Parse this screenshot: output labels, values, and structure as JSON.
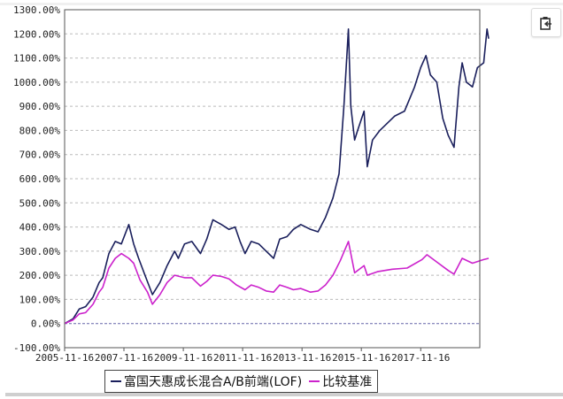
{
  "chart_data": {
    "type": "line",
    "title": "",
    "xlabel": "",
    "ylabel": "",
    "x_ticks": [
      "2005-11-16",
      "2007-11-16",
      "2009-11-16",
      "2011-11-16",
      "2013-11-16",
      "2015-11-16",
      "2017-11-16"
    ],
    "x_range": [
      "2005-11-16",
      "2020-03-01"
    ],
    "y_ticks": [
      "1300.00%",
      "1200.00%",
      "1100.00%",
      "1000.00%",
      "900.00%",
      "800.00%",
      "700.00%",
      "600.00%",
      "500.00%",
      "400.00%",
      "300.00%",
      "200.00%",
      "100.00%",
      "0.00%",
      "-100.00%"
    ],
    "ylim": [
      -100,
      1300
    ],
    "grid": "horizontal dashed",
    "legend_position": "bottom",
    "series": [
      {
        "name": "富国天惠成长混合A/B前端(LOF)",
        "color": "#1a1f5c",
        "points": [
          [
            "2005-11-16",
            0
          ],
          [
            "2006-03-01",
            20
          ],
          [
            "2006-05-15",
            60
          ],
          [
            "2006-08-01",
            70
          ],
          [
            "2006-11-01",
            110
          ],
          [
            "2007-01-15",
            170
          ],
          [
            "2007-03-01",
            190
          ],
          [
            "2007-05-15",
            290
          ],
          [
            "2007-08-01",
            340
          ],
          [
            "2007-10-15",
            330
          ],
          [
            "2008-01-15",
            410
          ],
          [
            "2008-03-15",
            330
          ],
          [
            "2008-05-15",
            270
          ],
          [
            "2008-08-01",
            200
          ],
          [
            "2008-11-01",
            120
          ],
          [
            "2009-02-01",
            170
          ],
          [
            "2009-05-01",
            240
          ],
          [
            "2009-08-01",
            300
          ],
          [
            "2009-09-15",
            270
          ],
          [
            "2009-12-01",
            330
          ],
          [
            "2010-03-01",
            340
          ],
          [
            "2010-06-15",
            290
          ],
          [
            "2010-09-01",
            350
          ],
          [
            "2010-11-15",
            430
          ],
          [
            "2011-03-01",
            410
          ],
          [
            "2011-06-01",
            390
          ],
          [
            "2011-08-15",
            400
          ],
          [
            "2011-10-15",
            340
          ],
          [
            "2011-12-15",
            290
          ],
          [
            "2012-03-01",
            340
          ],
          [
            "2012-06-01",
            330
          ],
          [
            "2012-09-01",
            300
          ],
          [
            "2012-12-01",
            270
          ],
          [
            "2013-02-15",
            350
          ],
          [
            "2013-05-15",
            360
          ],
          [
            "2013-08-01",
            390
          ],
          [
            "2013-11-01",
            410
          ],
          [
            "2014-03-01",
            390
          ],
          [
            "2014-06-01",
            380
          ],
          [
            "2014-09-01",
            440
          ],
          [
            "2014-12-01",
            520
          ],
          [
            "2015-02-15",
            620
          ],
          [
            "2015-04-15",
            900
          ],
          [
            "2015-06-10",
            1220
          ],
          [
            "2015-07-10",
            900
          ],
          [
            "2015-08-25",
            760
          ],
          [
            "2015-10-01",
            800
          ],
          [
            "2015-12-20",
            880
          ],
          [
            "2016-01-28",
            650
          ],
          [
            "2016-04-01",
            760
          ],
          [
            "2016-07-01",
            800
          ],
          [
            "2016-10-01",
            830
          ],
          [
            "2017-01-01",
            860
          ],
          [
            "2017-05-01",
            880
          ],
          [
            "2017-09-01",
            980
          ],
          [
            "2017-11-15",
            1060
          ],
          [
            "2018-01-20",
            1110
          ],
          [
            "2018-03-15",
            1030
          ],
          [
            "2018-06-01",
            1000
          ],
          [
            "2018-08-15",
            850
          ],
          [
            "2018-10-20",
            780
          ],
          [
            "2018-12-31",
            730
          ],
          [
            "2019-03-01",
            980
          ],
          [
            "2019-04-10",
            1080
          ],
          [
            "2019-06-01",
            1000
          ],
          [
            "2019-08-15",
            980
          ],
          [
            "2019-10-15",
            1060
          ],
          [
            "2019-12-31",
            1080
          ],
          [
            "2020-02-10",
            1220
          ],
          [
            "2020-03-01",
            1180
          ]
        ]
      },
      {
        "name": "比较基准",
        "color": "#cc22cc",
        "points": [
          [
            "2005-11-16",
            0
          ],
          [
            "2006-03-01",
            15
          ],
          [
            "2006-05-15",
            40
          ],
          [
            "2006-08-01",
            45
          ],
          [
            "2006-11-01",
            80
          ],
          [
            "2007-01-15",
            130
          ],
          [
            "2007-03-01",
            150
          ],
          [
            "2007-05-15",
            230
          ],
          [
            "2007-08-01",
            270
          ],
          [
            "2007-10-15",
            290
          ],
          [
            "2008-01-15",
            270
          ],
          [
            "2008-03-15",
            250
          ],
          [
            "2008-06-01",
            180
          ],
          [
            "2008-09-01",
            130
          ],
          [
            "2008-11-01",
            80
          ],
          [
            "2009-02-01",
            120
          ],
          [
            "2009-05-01",
            170
          ],
          [
            "2009-08-01",
            200
          ],
          [
            "2009-12-01",
            190
          ],
          [
            "2010-03-01",
            190
          ],
          [
            "2010-06-15",
            155
          ],
          [
            "2010-09-01",
            175
          ],
          [
            "2010-11-15",
            200
          ],
          [
            "2011-03-01",
            195
          ],
          [
            "2011-06-01",
            185
          ],
          [
            "2011-09-01",
            160
          ],
          [
            "2011-12-15",
            140
          ],
          [
            "2012-03-01",
            160
          ],
          [
            "2012-06-01",
            150
          ],
          [
            "2012-09-01",
            135
          ],
          [
            "2012-12-01",
            130
          ],
          [
            "2013-02-15",
            160
          ],
          [
            "2013-05-15",
            150
          ],
          [
            "2013-08-01",
            140
          ],
          [
            "2013-11-01",
            145
          ],
          [
            "2014-03-01",
            130
          ],
          [
            "2014-06-01",
            135
          ],
          [
            "2014-09-01",
            160
          ],
          [
            "2014-12-01",
            200
          ],
          [
            "2015-03-01",
            260
          ],
          [
            "2015-06-10",
            340
          ],
          [
            "2015-08-25",
            210
          ],
          [
            "2015-12-20",
            240
          ],
          [
            "2016-01-28",
            200
          ],
          [
            "2016-06-01",
            215
          ],
          [
            "2016-12-01",
            225
          ],
          [
            "2017-06-01",
            230
          ],
          [
            "2017-12-01",
            265
          ],
          [
            "2018-02-01",
            285
          ],
          [
            "2018-06-01",
            255
          ],
          [
            "2018-10-20",
            220
          ],
          [
            "2018-12-31",
            205
          ],
          [
            "2019-04-10",
            270
          ],
          [
            "2019-08-15",
            250
          ],
          [
            "2019-12-31",
            265
          ],
          [
            "2020-03-01",
            270
          ]
        ]
      }
    ]
  },
  "legend": {
    "items": [
      "富国天惠成长混合A/B前端(LOF)",
      "比较基准"
    ]
  },
  "toolbar": {
    "copy_icon": "clipboard-icon"
  }
}
